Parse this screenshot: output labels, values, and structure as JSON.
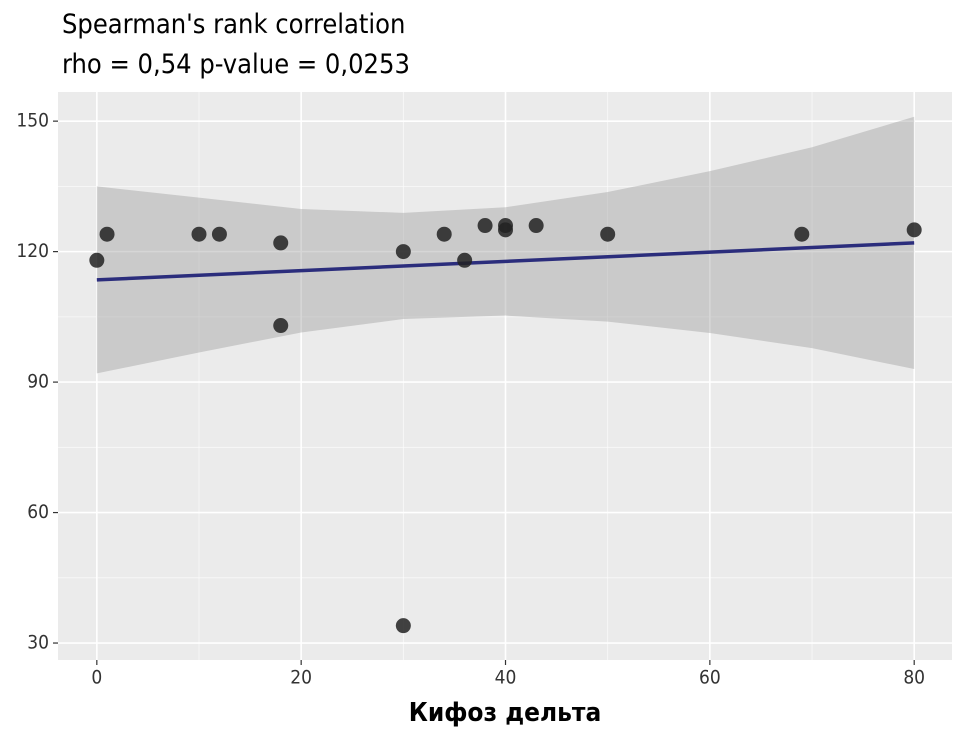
{
  "chart_data": {
    "type": "scatter",
    "title": "Spearman's rank correlation",
    "subtitle": "rho = 0,54 p-value = 0,0253",
    "x_label": "Кифоз дельта",
    "x": [
      0,
      1,
      10,
      12,
      18,
      18,
      30,
      30,
      34,
      36,
      38,
      40,
      40,
      43,
      50,
      69,
      80
    ],
    "values": [
      118,
      124,
      124,
      124,
      122,
      103,
      120,
      34,
      124,
      118,
      126,
      126,
      125,
      126,
      124,
      124,
      125
    ],
    "color": "#222222",
    "fit": {
      "x": [
        0,
        80
      ],
      "values": [
        113.5,
        122
      ],
      "color": "#2b2d7c"
    },
    "band": {
      "x": [
        0,
        10,
        20,
        30,
        40,
        50,
        60,
        70,
        80
      ],
      "upper": [
        135,
        132.4,
        129.8,
        128.9,
        130.2,
        133.7,
        138.5,
        144,
        151
      ],
      "lower": [
        92,
        96.8,
        101.4,
        104.5,
        105.3,
        103.9,
        101.3,
        97.8,
        93
      ],
      "color": "#999999"
    },
    "xlim": [
      -3.8,
      83.7
    ],
    "ylim": [
      26.1,
      156.7
    ],
    "xticks": [
      0,
      20,
      40,
      60,
      80
    ],
    "yticks": [
      30,
      60,
      90,
      120,
      150
    ],
    "x_minor_ticks": [
      10,
      30,
      50,
      70
    ],
    "y_minor_ticks": [
      45,
      75,
      105,
      135
    ],
    "grid": true
  }
}
